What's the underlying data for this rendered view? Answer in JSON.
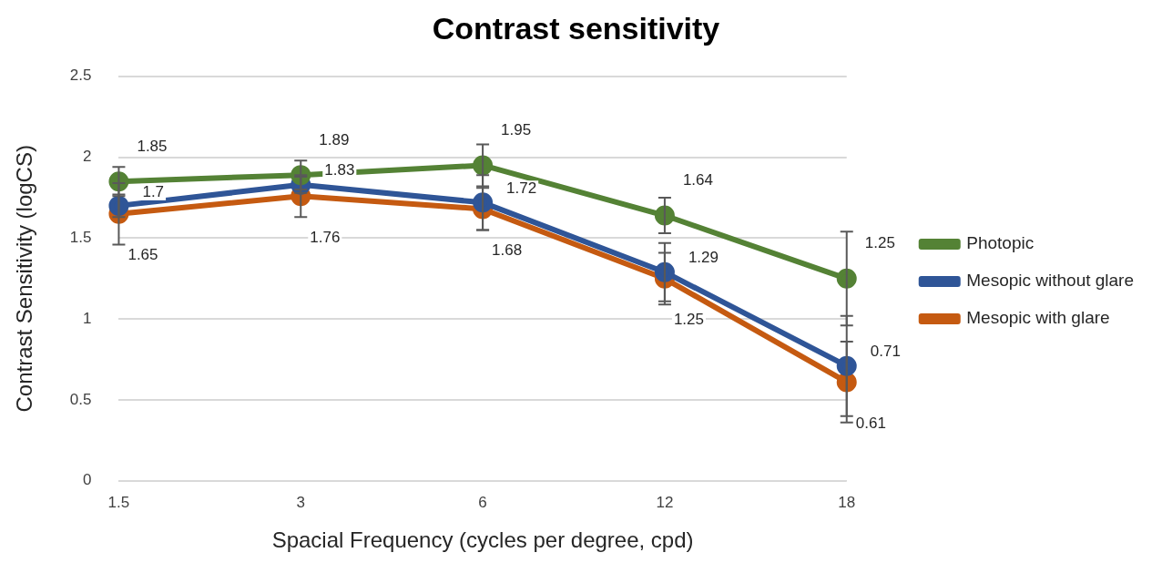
{
  "chart_data": {
    "type": "line",
    "title": "Contrast sensitivity",
    "xlabel": "Spacial Frequency (cycles per degree, cpd)",
    "ylabel": "Contrast Sensitivity (logCS)",
    "categories": [
      "1.5",
      "3",
      "6",
      "12",
      "18"
    ],
    "series": [
      {
        "name": "Photopic",
        "color": "#548235",
        "values": [
          1.85,
          1.89,
          1.95,
          1.64,
          1.25
        ],
        "errors": [
          0.09,
          0.09,
          0.13,
          0.11,
          0.29
        ]
      },
      {
        "name": "Mesopic without glare",
        "color": "#2f5597",
        "values": [
          1.7,
          1.83,
          1.72,
          1.29,
          0.71
        ],
        "errors": [
          0.07,
          0.05,
          0.17,
          0.18,
          0.31
        ]
      },
      {
        "name": "Mesopic with glare",
        "color": "#c55a11",
        "values": [
          1.65,
          1.76,
          1.68,
          1.25,
          0.61
        ],
        "errors": [
          0.19,
          0.13,
          0.13,
          0.16,
          0.25
        ]
      }
    ],
    "ylim": [
      0,
      2.5
    ],
    "yticks": [
      0,
      0.5,
      1,
      1.5,
      2,
      2.5
    ],
    "grid": "y",
    "legend": "right",
    "marker": "circle",
    "line_style": "solid",
    "data_labels": true
  }
}
